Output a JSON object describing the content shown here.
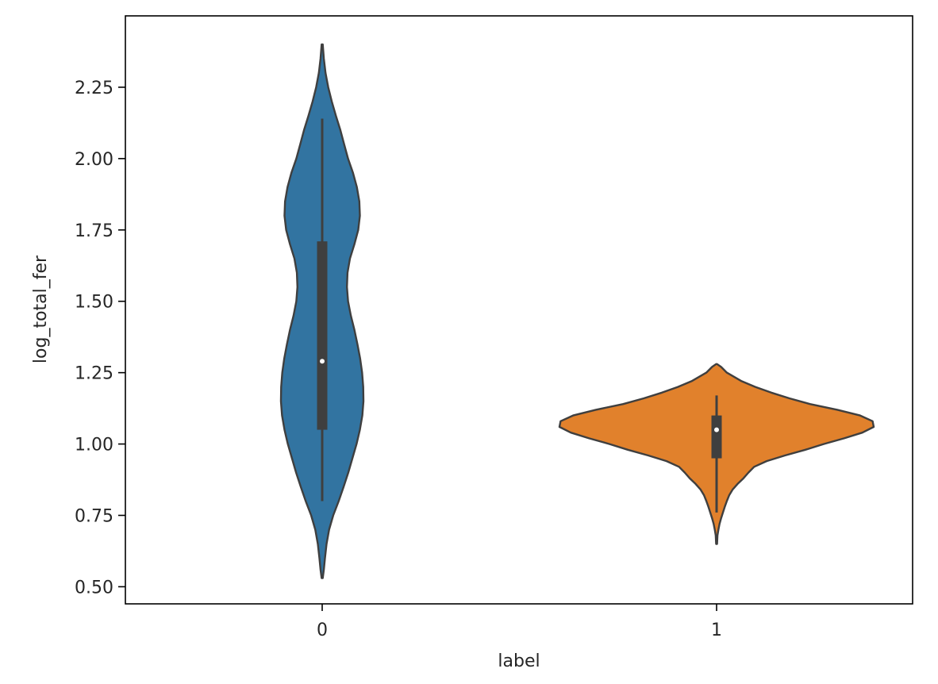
{
  "chart_data": {
    "type": "violin",
    "title": "",
    "xlabel": "label",
    "ylabel": "log_total_fer",
    "categories": [
      "0",
      "1"
    ],
    "ylim": [
      0.44,
      2.5
    ],
    "yticks": [
      0.5,
      0.75,
      1.0,
      1.25,
      1.5,
      1.75,
      2.0,
      2.25
    ],
    "ytick_labels": [
      "0.50",
      "0.75",
      "1.00",
      "1.25",
      "1.50",
      "1.75",
      "2.00",
      "2.25"
    ],
    "grid": false,
    "legend": "none",
    "series": [
      {
        "category": "0",
        "color": "#3274a1",
        "whisker_low": 0.8,
        "q1": 1.05,
        "median": 1.29,
        "q3": 1.71,
        "whisker_high": 2.14,
        "density": [
          [
            2.4,
            0.002
          ],
          [
            2.35,
            0.006
          ],
          [
            2.3,
            0.012
          ],
          [
            2.25,
            0.022
          ],
          [
            2.2,
            0.035
          ],
          [
            2.15,
            0.05
          ],
          [
            2.1,
            0.066
          ],
          [
            2.05,
            0.08
          ],
          [
            2.0,
            0.094
          ],
          [
            1.95,
            0.112
          ],
          [
            1.9,
            0.126
          ],
          [
            1.85,
            0.135
          ],
          [
            1.8,
            0.137
          ],
          [
            1.75,
            0.131
          ],
          [
            1.7,
            0.117
          ],
          [
            1.65,
            0.101
          ],
          [
            1.6,
            0.092
          ],
          [
            1.55,
            0.09
          ],
          [
            1.5,
            0.094
          ],
          [
            1.45,
            0.104
          ],
          [
            1.4,
            0.117
          ],
          [
            1.35,
            0.128
          ],
          [
            1.3,
            0.138
          ],
          [
            1.25,
            0.145
          ],
          [
            1.2,
            0.149
          ],
          [
            1.15,
            0.15
          ],
          [
            1.1,
            0.146
          ],
          [
            1.05,
            0.137
          ],
          [
            1.0,
            0.125
          ],
          [
            0.95,
            0.11
          ],
          [
            0.9,
            0.095
          ],
          [
            0.85,
            0.078
          ],
          [
            0.8,
            0.06
          ],
          [
            0.75,
            0.04
          ],
          [
            0.7,
            0.025
          ],
          [
            0.65,
            0.016
          ],
          [
            0.6,
            0.01
          ],
          [
            0.56,
            0.006
          ],
          [
            0.53,
            0.002
          ]
        ]
      },
      {
        "category": "1",
        "color": "#e1812c",
        "whisker_low": 0.76,
        "q1": 0.95,
        "median": 1.05,
        "q3": 1.1,
        "whisker_high": 1.17,
        "density": [
          [
            1.28,
            0.002
          ],
          [
            1.27,
            0.02
          ],
          [
            1.25,
            0.045
          ],
          [
            1.22,
            0.11
          ],
          [
            1.2,
            0.17
          ],
          [
            1.18,
            0.24
          ],
          [
            1.16,
            0.32
          ],
          [
            1.14,
            0.41
          ],
          [
            1.12,
            0.53
          ],
          [
            1.1,
            0.63
          ],
          [
            1.08,
            0.685
          ],
          [
            1.06,
            0.69
          ],
          [
            1.04,
            0.64
          ],
          [
            1.02,
            0.56
          ],
          [
            1.0,
            0.47
          ],
          [
            0.98,
            0.39
          ],
          [
            0.96,
            0.3
          ],
          [
            0.94,
            0.22
          ],
          [
            0.92,
            0.165
          ],
          [
            0.9,
            0.14
          ],
          [
            0.88,
            0.118
          ],
          [
            0.86,
            0.092
          ],
          [
            0.84,
            0.07
          ],
          [
            0.82,
            0.055
          ],
          [
            0.8,
            0.045
          ],
          [
            0.78,
            0.036
          ],
          [
            0.76,
            0.028
          ],
          [
            0.74,
            0.02
          ],
          [
            0.72,
            0.013
          ],
          [
            0.7,
            0.008
          ],
          [
            0.68,
            0.004
          ],
          [
            0.65,
            0.002
          ]
        ]
      }
    ]
  }
}
